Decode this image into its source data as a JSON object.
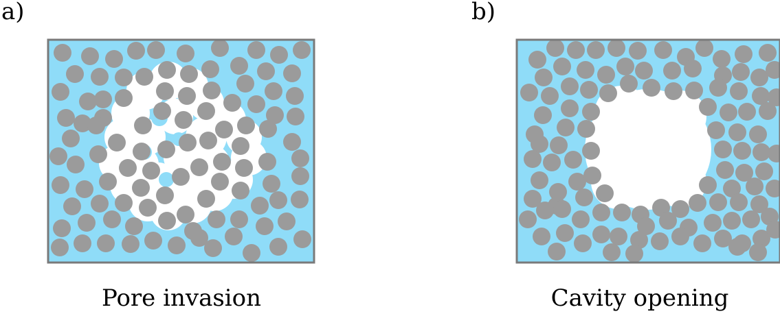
{
  "panels": [
    {
      "label": "a)",
      "caption": "Pore invasion"
    },
    {
      "label": "b)",
      "caption": "Cavity opening"
    }
  ],
  "colors": {
    "liquid": "#8fdcf8",
    "particle": "#9b9b9b",
    "frame": "#7a7a7a",
    "gas": "#ffffff"
  }
}
